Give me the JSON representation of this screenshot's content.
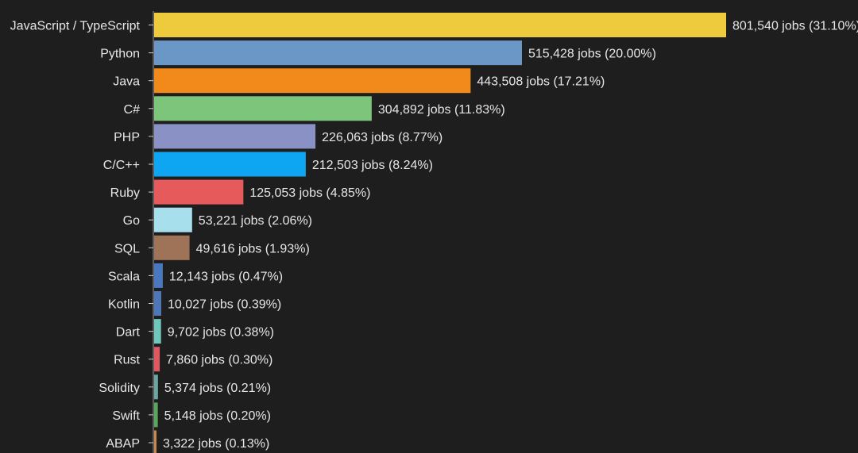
{
  "chart_data": {
    "type": "bar",
    "orientation": "horizontal",
    "title": "",
    "xlabel": "",
    "ylabel": "",
    "value_suffix": " jobs",
    "grid": false,
    "xlim": [
      0,
      801540
    ],
    "categories": [
      "JavaScript / TypeScript",
      "Python",
      "Java",
      "C#",
      "PHP",
      "C/C++",
      "Ruby",
      "Go",
      "SQL",
      "Scala",
      "Kotlin",
      "Dart",
      "Rust",
      "Solidity",
      "Swift",
      "ABAP"
    ],
    "values": [
      801540,
      515428,
      443508,
      304892,
      226063,
      212503,
      125053,
      53221,
      49616,
      12143,
      10027,
      9702,
      7860,
      5374,
      5148,
      3322
    ],
    "percentages": [
      "31.10%",
      "20.00%",
      "17.21%",
      "11.83%",
      "8.77%",
      "8.24%",
      "4.85%",
      "2.06%",
      "1.93%",
      "0.47%",
      "0.39%",
      "0.38%",
      "0.30%",
      "0.21%",
      "0.20%",
      "0.13%"
    ],
    "data_labels": [
      "801,540 jobs (31.10%)",
      "515,428 jobs (20.00%)",
      "443,508 jobs (17.21%)",
      "304,892 jobs (11.83%)",
      "226,063 jobs (8.77%)",
      "212,503 jobs (8.24%)",
      "125,053 jobs (4.85%)",
      "53,221 jobs (2.06%)",
      "49,616 jobs (1.93%)",
      "12,143 jobs (0.47%)",
      "10,027 jobs (0.39%)",
      "9,702 jobs (0.38%)",
      "7,860 jobs (0.30%)",
      "5,374 jobs (0.21%)",
      "5,148 jobs (0.20%)",
      "3,322 jobs (0.13%)"
    ],
    "colors": [
      "#eecb3d",
      "#6b97c6",
      "#f28a1b",
      "#7dc57a",
      "#8a92c5",
      "#0ea5f2",
      "#e65a5c",
      "#a8dfec",
      "#9f7358",
      "#4a78c0",
      "#4c77b8",
      "#6fc6bb",
      "#e0575f",
      "#6aa7a1",
      "#58a75a",
      "#c9884a"
    ]
  }
}
